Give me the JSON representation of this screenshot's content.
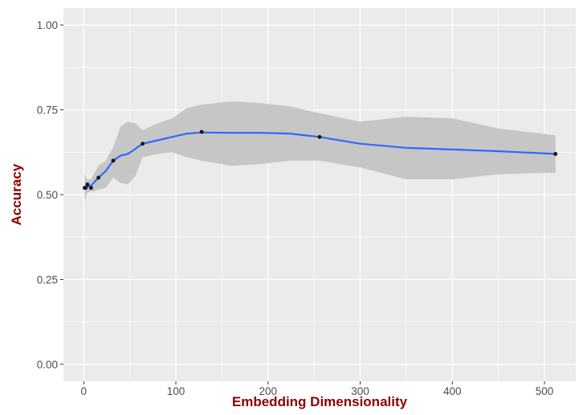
{
  "chart_data": {
    "type": "scatter",
    "title": "",
    "xlabel": "Embedding Dimensionality",
    "ylabel": "Accuracy",
    "xlim": [
      -22,
      534
    ],
    "ylim": [
      -0.05,
      1.05
    ],
    "x_ticks": [
      0,
      100,
      200,
      300,
      400,
      500
    ],
    "x_tick_labels": [
      "0",
      "100",
      "200",
      "300",
      "400",
      "500"
    ],
    "y_ticks": [
      0.0,
      0.25,
      0.5,
      0.75,
      1.0
    ],
    "y_tick_labels": [
      "0.00",
      "0.25",
      "0.50",
      "0.75",
      "1.00"
    ],
    "grid": true,
    "legend": "none",
    "points": [
      {
        "x": 1,
        "y": 0.52
      },
      {
        "x": 2,
        "y": 0.52
      },
      {
        "x": 4,
        "y": 0.53
      },
      {
        "x": 8,
        "y": 0.52
      },
      {
        "x": 16,
        "y": 0.55
      },
      {
        "x": 32,
        "y": 0.6
      },
      {
        "x": 64,
        "y": 0.65
      },
      {
        "x": 128,
        "y": 0.685
      },
      {
        "x": 256,
        "y": 0.67
      },
      {
        "x": 512,
        "y": 0.62
      }
    ],
    "smooth": {
      "x": [
        1,
        4,
        8,
        12,
        16,
        24,
        32,
        40,
        48,
        56,
        64,
        80,
        96,
        112,
        128,
        160,
        192,
        224,
        256,
        300,
        350,
        400,
        450,
        512
      ],
      "y": [
        0.52,
        0.523,
        0.527,
        0.538,
        0.55,
        0.57,
        0.6,
        0.615,
        0.62,
        0.635,
        0.65,
        0.66,
        0.67,
        0.68,
        0.683,
        0.682,
        0.682,
        0.68,
        0.67,
        0.65,
        0.638,
        0.633,
        0.628,
        0.62
      ],
      "lower": [
        0.48,
        0.505,
        0.51,
        0.51,
        0.515,
        0.52,
        0.55,
        0.535,
        0.53,
        0.555,
        0.61,
        0.62,
        0.625,
        0.61,
        0.6,
        0.585,
        0.59,
        0.6,
        0.6,
        0.58,
        0.545,
        0.545,
        0.56,
        0.565
      ],
      "upper": [
        0.56,
        0.545,
        0.545,
        0.565,
        0.585,
        0.6,
        0.64,
        0.7,
        0.715,
        0.71,
        0.69,
        0.71,
        0.725,
        0.755,
        0.765,
        0.775,
        0.77,
        0.76,
        0.74,
        0.715,
        0.73,
        0.725,
        0.695,
        0.675
      ]
    },
    "colors": {
      "panel": "#ebebeb",
      "grid": "#ffffff",
      "line": "#3366ff",
      "ribbon": "#c6c6c6",
      "point": "#111111",
      "axis_title": "#8b0000",
      "tick_text": "#4d4d4d"
    }
  }
}
